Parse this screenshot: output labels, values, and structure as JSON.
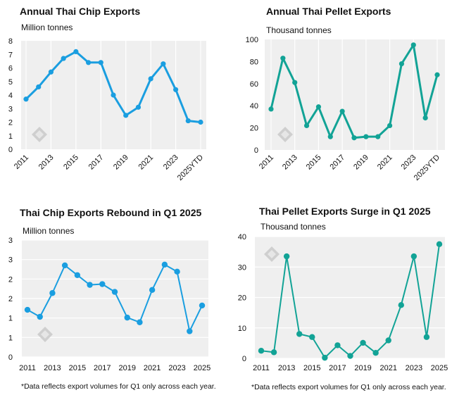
{
  "colors": {
    "blue": "#1a9ee0",
    "teal": "#12a396",
    "plot_bg": "#efefef",
    "grid": "#ffffff"
  },
  "chart_data": [
    {
      "id": "c1",
      "type": "line",
      "title": "Annual Thai Chip Exports",
      "unit": "Million tonnes",
      "color": "#1a9ee0",
      "x": [
        "2011",
        "2012",
        "2013",
        "2014",
        "2015",
        "2016",
        "2017",
        "2018",
        "2019",
        "2020",
        "2021",
        "2022",
        "2023",
        "2024",
        "2025YTD"
      ],
      "values": [
        3.7,
        4.6,
        5.7,
        6.7,
        7.2,
        6.4,
        6.4,
        4.0,
        2.5,
        3.1,
        5.2,
        6.3,
        4.4,
        2.1,
        2.0
      ],
      "y_ticks": [
        "0",
        "1",
        "2",
        "3",
        "4",
        "5",
        "6",
        "7",
        "8"
      ],
      "x_ticks": [
        "2011",
        "2013",
        "2015",
        "2017",
        "2019",
        "2021",
        "2023",
        "2025YTD"
      ],
      "ylim": [
        0,
        8
      ],
      "grid": "vertical",
      "x_tick_rotation": "-45deg"
    },
    {
      "id": "c2",
      "type": "line",
      "title": "Annual Thai Pellet Exports",
      "unit": "Thousand tonnes",
      "color": "#12a396",
      "x": [
        "2011",
        "2012",
        "2013",
        "2014",
        "2015",
        "2016",
        "2017",
        "2018",
        "2019",
        "2020",
        "2021",
        "2022",
        "2023",
        "2024",
        "2025YTD"
      ],
      "values": [
        37,
        83,
        61,
        22,
        39,
        12,
        35,
        11,
        12,
        12,
        22,
        78,
        95,
        29,
        68
      ],
      "y_ticks": [
        "0",
        "20",
        "40",
        "60",
        "80",
        "100"
      ],
      "x_ticks": [
        "2011",
        "2013",
        "2015",
        "2017",
        "2019",
        "2021",
        "2023",
        "2025YTD"
      ],
      "ylim": [
        0,
        100
      ],
      "grid": "vertical",
      "x_tick_rotation": "-45deg"
    },
    {
      "id": "c3",
      "type": "line",
      "title": "Thai Chip Exports Rebound in Q1 2025",
      "unit": "Million tonnes",
      "note": "*Data reflects export volumes for Q1 only across each year.",
      "color": "#1a9ee0",
      "x": [
        "2011",
        "2012",
        "2013",
        "2014",
        "2015",
        "2016",
        "2017",
        "2018",
        "2019",
        "2020",
        "2021",
        "2022",
        "2023",
        "2024",
        "2025"
      ],
      "values": [
        1.21,
        1.03,
        1.64,
        2.35,
        2.1,
        1.85,
        1.87,
        1.67,
        1.01,
        0.89,
        1.72,
        2.37,
        2.19,
        0.66,
        1.32
      ],
      "y_ticks": [
        "0",
        "1",
        "1",
        "2",
        "2",
        "3",
        "3"
      ],
      "x_ticks": [
        "2011",
        "2013",
        "2015",
        "2017",
        "2019",
        "2021",
        "2023",
        "2025"
      ],
      "ylim": [
        0,
        3
      ],
      "grid": "horizontal",
      "x_tick_rotation": "0deg"
    },
    {
      "id": "c4",
      "type": "line",
      "title": "Thai Pellet Exports Surge in Q1 2025",
      "unit": "Thousand tonnes",
      "note": "*Data reflects export volumes for Q1 only across each year.",
      "color": "#12a396",
      "x": [
        "2011",
        "2012",
        "2013",
        "2014",
        "2015",
        "2016",
        "2017",
        "2018",
        "2019",
        "2020",
        "2021",
        "2022",
        "2023",
        "2024",
        "2025"
      ],
      "values": [
        2.5,
        2,
        33.5,
        8,
        7,
        0.2,
        4.3,
        0.8,
        5.1,
        1.8,
        5.9,
        17.5,
        33.5,
        7,
        37.5
      ],
      "y_ticks": [
        "0",
        "10",
        "20",
        "30",
        "40"
      ],
      "x_ticks": [
        "2011",
        "2013",
        "2015",
        "2017",
        "2019",
        "2021",
        "2023",
        "2025"
      ],
      "ylim": [
        0,
        40
      ],
      "grid": "horizontal",
      "x_tick_rotation": "0deg"
    }
  ]
}
